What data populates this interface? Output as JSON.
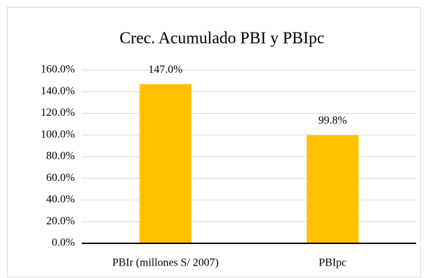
{
  "chart_data": {
    "type": "bar",
    "title": "Crec. Acumulado PBI y PBIpc",
    "categories": [
      "PBIr (millones S/ 2007)",
      "PBIpc"
    ],
    "values": [
      147.0,
      99.8
    ],
    "value_labels": [
      "147.0%",
      "99.8%"
    ],
    "color": "#ffc000",
    "ylim": [
      0,
      160
    ],
    "yticks": [
      {
        "value": 0,
        "label": "0.0%"
      },
      {
        "value": 20,
        "label": "20.0%"
      },
      {
        "value": 40,
        "label": "40.0%"
      },
      {
        "value": 60,
        "label": "60.0%"
      },
      {
        "value": 80,
        "label": "80.0%"
      },
      {
        "value": 100,
        "label": "100.0%"
      },
      {
        "value": 120,
        "label": "120.0%"
      },
      {
        "value": 140,
        "label": "140.0%"
      },
      {
        "value": 160,
        "label": "160.0%"
      }
    ],
    "grid": true
  }
}
